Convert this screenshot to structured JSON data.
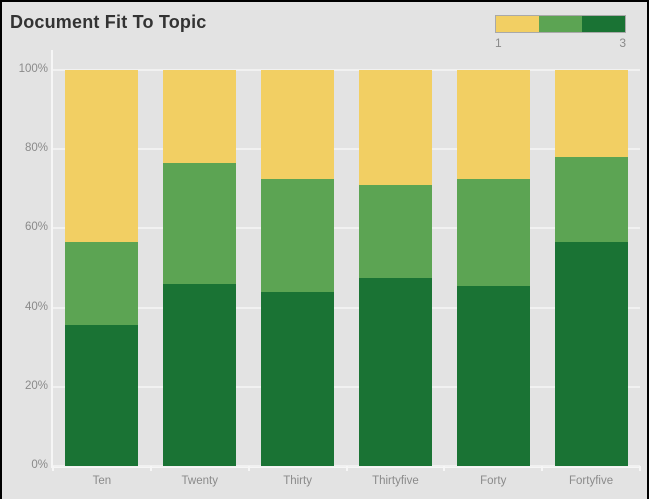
{
  "title": "Document Fit To Topic",
  "colors": {
    "background": "#e3e3e3",
    "frame_border": "#000000",
    "grid": "#f1f1f1",
    "axis_text": "#8a8a8a",
    "title_text": "#333333",
    "legend_border": "#a9a9a9"
  },
  "legend": {
    "min_label": "1",
    "max_label": "3",
    "colors": [
      "#f2cf63",
      "#5ca453",
      "#1a7334"
    ]
  },
  "chart_data": {
    "type": "bar",
    "stacked": true,
    "title": "Document Fit To Topic",
    "categories": [
      "Ten",
      "Twenty",
      "Thirty",
      "Thirtyfive",
      "Forty",
      "Fortyfive"
    ],
    "series_order": "bottom-to-top",
    "series": [
      {
        "name": "3",
        "color": "#1a7334",
        "values": [
          35.5,
          46.0,
          44.0,
          47.5,
          45.5,
          56.5
        ]
      },
      {
        "name": "2",
        "color": "#5ca453",
        "values": [
          21.0,
          30.5,
          28.5,
          23.5,
          27.0,
          21.5
        ]
      },
      {
        "name": "1",
        "color": "#f2cf63",
        "values": [
          43.5,
          23.5,
          27.5,
          29.0,
          27.5,
          22.0
        ]
      }
    ],
    "ylabel": "",
    "xlabel": "",
    "ylim": [
      0,
      100
    ],
    "y_ticks": [
      "0%",
      "20%",
      "40%",
      "60%",
      "80%",
      "100%"
    ],
    "y_tick_values": [
      0,
      20,
      40,
      60,
      80,
      100
    ],
    "grid": true,
    "legend_position": "top-right"
  }
}
